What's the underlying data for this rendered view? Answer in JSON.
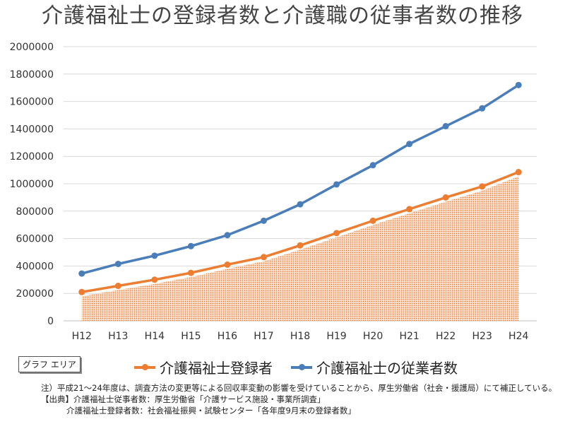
{
  "title": "介護福祉士の登録者数と介護職の従事者数の推移",
  "tooltip": "グラフ エリア",
  "notes": {
    "note": "注）平成21～24年度は、調査方法の変更等による回収率変動の影響を受けていることから、厚生労働省（社会・援護局）にて補正している。",
    "source_label": "【出典】",
    "source1": "介護福祉士従事者数：厚生労働省「介護サービス施設・事業所調査」",
    "source2": "介護福祉士登録者数：社会福祉振興・試験センター「各年度9月末の登録者数」"
  },
  "colors": {
    "orange": "#ED7D31",
    "blue": "#4A7EBB",
    "area": "#F4B183"
  },
  "chart_data": {
    "type": "line",
    "categories": [
      "H12",
      "H13",
      "H14",
      "H15",
      "H16",
      "H17",
      "H18",
      "H19",
      "H20",
      "H21",
      "H22",
      "H23",
      "H24"
    ],
    "series": [
      {
        "name": "介護福祉士登録者",
        "values": [
          210000,
          255000,
          300000,
          350000,
          410000,
          465000,
          550000,
          640000,
          730000,
          815000,
          900000,
          980000,
          1085000
        ]
      },
      {
        "name": "介護福祉士の従業者数",
        "values": [
          345000,
          415000,
          475000,
          545000,
          625000,
          730000,
          850000,
          995000,
          1135000,
          1290000,
          1420000,
          1550000,
          1720000
        ]
      }
    ],
    "yticks": [
      "0",
      "200000",
      "400000",
      "600000",
      "800000",
      "1000000",
      "1200000",
      "1400000",
      "1600000",
      "1800000",
      "2000000"
    ],
    "ylim": [
      0,
      2000000
    ],
    "grid": true,
    "legend": "bottom"
  }
}
